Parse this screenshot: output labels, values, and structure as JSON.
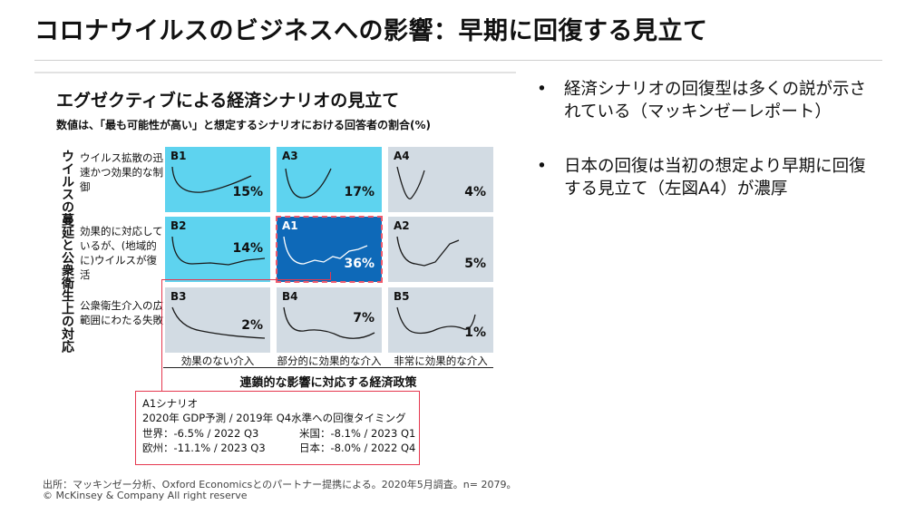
{
  "slide": {
    "title": "コロナウイルスのビジネスへの影響：早期に回復する見立て"
  },
  "figure": {
    "title": "エグゼクティブによる経済シナリオの見立て",
    "subtitle": "数値は、「最も可能性が高い」と想定するシナリオにおける回答者の割合(%)",
    "y_axis_label": "ウイルスの蔓延と公衆衛生上の対応",
    "x_axis_label": "連鎖的な影響に対応する経済政策",
    "row_labels": [
      "ウイルス拡散の迅速かつ効果的な制御",
      "効果的に対応しているが、(地域的に)ウイルスが復活",
      "公衆衛生介入の広範囲にわたる失敗"
    ],
    "column_labels": [
      "効果のない介入",
      "部分的に効果的な介入",
      "非常に効果的な介入"
    ],
    "cells": [
      {
        "id": "B1",
        "percent": "15%",
        "color": "#5ed3ef"
      },
      {
        "id": "A3",
        "percent": "17%",
        "color": "#5ed3ef"
      },
      {
        "id": "A4",
        "percent": "4%",
        "color": "#d2dbe3"
      },
      {
        "id": "B2",
        "percent": "14%",
        "color": "#5ed3ef"
      },
      {
        "id": "A1",
        "percent": "36%",
        "color": "#0e69b8"
      },
      {
        "id": "A2",
        "percent": "5%",
        "color": "#d2dbe3"
      },
      {
        "id": "B3",
        "percent": "2%",
        "color": "#d2dbe3"
      },
      {
        "id": "B4",
        "percent": "7%",
        "color": "#d2dbe3"
      },
      {
        "id": "B5",
        "percent": "1%",
        "color": "#d2dbe3"
      }
    ],
    "a1_scenario": {
      "heading": "A1シナリオ",
      "description": "2020年 GDP予測 / 2019年 Q4水準への回復タイミング",
      "world": "世界：-6.5% / 2022 Q3",
      "us": "米国：-8.1% / 2023 Q1",
      "europe": "欧州：-11.1% / 2023 Q3",
      "japan": "日本：-8.0% / 2022 Q4"
    },
    "source": "出所：マッキンゼー分析、Oxford Economicsとのパートナー提携による。2020年5月調査。n= 2079。",
    "copyright": "© McKinsey & Company  All right reserve",
    "highlight_color": "#e5384f"
  },
  "bullets": [
    "経済シナリオの回復型は多くの説が示されている（マッキンゼーレポート）",
    "日本の回復は当初の想定より早期に回復する見立て（左図A4）が濃厚"
  ],
  "bullet_symbol": "•"
}
